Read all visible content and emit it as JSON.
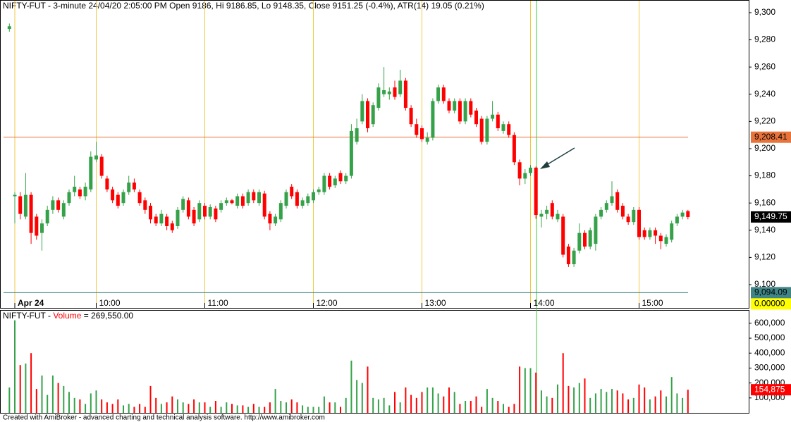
{
  "chart_data": [
    {
      "type": "candlestick",
      "title": "NIFTY-FUT - 3-minute 24/04/20 2:05:00 PM Open 9186, Hi 9186.85, Lo 9148.35, Close 9151.25 (-0.4%), ATR(14) 19.05  (0.21%)",
      "categories": [
        null,
        "Apr 24",
        null,
        null,
        null,
        null,
        null,
        null,
        null,
        null,
        null,
        null,
        null,
        null,
        null,
        null,
        "10:00",
        null,
        null,
        null,
        null,
        null,
        null,
        null,
        null,
        null,
        null,
        null,
        null,
        null,
        null,
        null,
        null,
        null,
        null,
        null,
        "11:00",
        null,
        null,
        null,
        null,
        null,
        null,
        null,
        null,
        null,
        null,
        null,
        null,
        null,
        null,
        null,
        null,
        null,
        null,
        null,
        "12:00",
        null,
        null,
        null,
        null,
        null,
        null,
        null,
        null,
        null,
        null,
        null,
        null,
        null,
        null,
        null,
        null,
        null,
        null,
        null,
        "13:00",
        null,
        null,
        null,
        null,
        null,
        null,
        null,
        null,
        null,
        null,
        null,
        null,
        null,
        null,
        null,
        null,
        null,
        null,
        null,
        "14:00",
        null,
        null,
        null,
        null,
        null,
        null,
        null,
        null,
        null,
        null,
        null,
        null,
        null,
        null,
        null,
        null,
        null,
        null,
        null,
        "15:00",
        null,
        null,
        null,
        null,
        null,
        null,
        null,
        null,
        null
      ],
      "open": [
        9288,
        9165,
        9165,
        9150,
        9166,
        9150,
        9138,
        9145,
        9155,
        9162,
        9150,
        9160,
        9168,
        9170,
        9165,
        9170,
        9192,
        9194,
        9178,
        9170,
        9166,
        9160,
        9168,
        9175,
        9168,
        9162,
        9158,
        9150,
        9145,
        9150,
        9145,
        9143,
        9155,
        9162,
        9155,
        9148,
        9158,
        9150,
        9156,
        9155,
        9160,
        9162,
        9158,
        9165,
        9160,
        9168,
        9160,
        9167,
        9152,
        9145,
        9148,
        9158,
        9172,
        9168,
        9158,
        9160,
        9162,
        9168,
        9168,
        9180,
        9173,
        9182,
        9176,
        9180,
        9205,
        9220,
        9235,
        9218,
        9230,
        9240,
        9240,
        9245,
        9240,
        9250,
        9230,
        9218,
        9215,
        9205,
        9208,
        9235,
        9245,
        9235,
        9228,
        9235,
        9220,
        9235,
        9228,
        9222,
        9205,
        9222,
        9225,
        9213,
        9218,
        9210,
        9190,
        9178,
        9182,
        9186,
        9150,
        9152,
        9160,
        9148,
        9150,
        9128,
        9115,
        9125,
        9138,
        9128,
        9130,
        9150,
        9155,
        9160,
        9168,
        9158,
        9150,
        9146,
        9155,
        9140,
        9135,
        9140,
        9136,
        9130,
        9133,
        9145,
        9150,
        9154
      ],
      "high": [
        9292,
        9168,
        9168,
        9182,
        9168,
        9152,
        9148,
        9158,
        9165,
        9164,
        9162,
        9170,
        9180,
        9172,
        9175,
        9198,
        9205,
        9196,
        9180,
        9172,
        9168,
        9170,
        9180,
        9178,
        9170,
        9164,
        9160,
        9152,
        9155,
        9152,
        9147,
        9157,
        9165,
        9164,
        9157,
        9162,
        9160,
        9159,
        9158,
        9162,
        9164,
        9163,
        9167,
        9167,
        9170,
        9170,
        9170,
        9169,
        9154,
        9152,
        9162,
        9170,
        9174,
        9170,
        9164,
        9167,
        9170,
        9172,
        9182,
        9182,
        9180,
        9184,
        9182,
        9218,
        9222,
        9240,
        9237,
        9234,
        9248,
        9260,
        9245,
        9250,
        9258,
        9252,
        9232,
        9222,
        9217,
        9212,
        9237,
        9247,
        9247,
        9237,
        9237,
        9237,
        9237,
        9237,
        9230,
        9224,
        9224,
        9235,
        9227,
        9220,
        9220,
        9212,
        9192,
        9185,
        9188,
        9186.85,
        9155,
        9158,
        9162,
        9155,
        9152,
        9130,
        9127,
        9145,
        9140,
        9142,
        9152,
        9157,
        9162,
        9176,
        9170,
        9160,
        9152,
        9157,
        9157,
        9142,
        9142,
        9142,
        9138,
        9137,
        9147,
        9152,
        9155,
        9155
      ],
      "low": [
        9286,
        9145,
        9148,
        9148,
        9130,
        9133,
        9125,
        9143,
        9152,
        9153,
        9148,
        9158,
        9165,
        9163,
        9162,
        9168,
        9190,
        9178,
        9168,
        9160,
        9156,
        9158,
        9166,
        9168,
        9158,
        9152,
        9145,
        9143,
        9143,
        9140,
        9138,
        9141,
        9153,
        9148,
        9143,
        9146,
        9148,
        9148,
        9146,
        9153,
        9158,
        9159,
        9156,
        9156,
        9158,
        9160,
        9158,
        9148,
        9140,
        9143,
        9146,
        9156,
        9163,
        9156,
        9156,
        9158,
        9160,
        9166,
        9166,
        9170,
        9171,
        9174,
        9174,
        9178,
        9203,
        9218,
        9212,
        9216,
        9228,
        9238,
        9236,
        9236,
        9238,
        9228,
        9216,
        9208,
        9205,
        9203,
        9206,
        9233,
        9233,
        9226,
        9226,
        9218,
        9218,
        9223,
        9216,
        9203,
        9203,
        9220,
        9213,
        9211,
        9208,
        9188,
        9173,
        9174,
        9180,
        9148.35,
        9142,
        9148,
        9148,
        9146,
        9120,
        9113,
        9113,
        9123,
        9126,
        9126,
        9125,
        9148,
        9153,
        9158,
        9153,
        9148,
        9144,
        9144,
        9133,
        9133,
        9133,
        9130,
        9126,
        9128,
        9131,
        9143,
        9148,
        9148
      ],
      "close": [
        9290,
        9166,
        9152,
        9166,
        9138,
        9136,
        9145,
        9155,
        9162,
        9155,
        9160,
        9168,
        9172,
        9165,
        9172,
        9194,
        9195,
        9180,
        9170,
        9162,
        9158,
        9168,
        9175,
        9170,
        9160,
        9155,
        9148,
        9145,
        9152,
        9143,
        9140,
        9155,
        9163,
        9150,
        9145,
        9160,
        9150,
        9157,
        9148,
        9160,
        9162,
        9160,
        9165,
        9158,
        9168,
        9162,
        9168,
        9150,
        9145,
        9150,
        9160,
        9168,
        9165,
        9158,
        9162,
        9165,
        9168,
        9170,
        9180,
        9172,
        9178,
        9176,
        9180,
        9213,
        9215,
        9235,
        9215,
        9232,
        9245,
        9243,
        9242,
        9238,
        9250,
        9230,
        9218,
        9210,
        9207,
        9208,
        9235,
        9245,
        9235,
        9228,
        9235,
        9220,
        9235,
        9225,
        9218,
        9205,
        9222,
        9225,
        9215,
        9218,
        9210,
        9190,
        9178,
        9182,
        9186,
        9151.25,
        9152,
        9155,
        9150,
        9152,
        9122,
        9115,
        9125,
        9138,
        9128,
        9140,
        9150,
        9155,
        9160,
        9165,
        9155,
        9150,
        9146,
        9155,
        9135,
        9135,
        9140,
        9136,
        9132,
        9135,
        9145,
        9150,
        9153,
        9149.75
      ],
      "last_close_label": "9,149.75",
      "up_color": "#35a24a",
      "down_color": "#ff0000",
      "ylim": [
        9082.9,
        9309.3
      ],
      "yticks": [
        {
          "value": 9100,
          "label": "9,100"
        },
        {
          "value": 9120,
          "label": "9,120"
        },
        {
          "value": 9140,
          "label": "9,140"
        },
        {
          "value": 9160,
          "label": "9,160"
        },
        {
          "value": 9180,
          "label": "9,180"
        },
        {
          "value": 9200,
          "label": "9,200"
        },
        {
          "value": 9220,
          "label": "9,220"
        },
        {
          "value": 9240,
          "label": "9,240"
        },
        {
          "value": 9260,
          "label": "9,260"
        },
        {
          "value": 9280,
          "label": "9,280"
        },
        {
          "value": 9300,
          "label": "9,300"
        }
      ],
      "lines": [
        {
          "value": 9208.41,
          "label": "9,208.41",
          "color": "#e8743b"
        },
        {
          "value": 9094.09,
          "label": "9,094.09",
          "color": "#3f8585"
        }
      ],
      "indicator_label": "0.00000",
      "indicator_color": "#ffff00"
    },
    {
      "type": "bar",
      "title": "NIFTY-FUT - ",
      "series_name": "Volume",
      "value_text": " = 269,550.00",
      "values": [
        170000,
        620000,
        320000,
        330000,
        400000,
        160000,
        250000,
        120000,
        250000,
        200000,
        180000,
        140000,
        100000,
        90000,
        60000,
        130000,
        150000,
        90000,
        70000,
        60000,
        90000,
        50000,
        60000,
        40000,
        60000,
        40000,
        180000,
        100000,
        60000,
        70000,
        110000,
        90000,
        70000,
        60000,
        90000,
        70000,
        70000,
        40000,
        80000,
        40000,
        70000,
        60000,
        50000,
        50000,
        40000,
        60000,
        40000,
        40000,
        70000,
        160000,
        80000,
        70000,
        90000,
        70000,
        50000,
        40000,
        40000,
        40000,
        110000,
        70000,
        70000,
        40000,
        100000,
        350000,
        220000,
        200000,
        310000,
        100000,
        90000,
        100000,
        50000,
        140000,
        70000,
        170000,
        120000,
        100000,
        140000,
        170000,
        170000,
        130000,
        110000,
        170000,
        140000,
        60000,
        80000,
        80000,
        110000,
        40000,
        160000,
        100000,
        80000,
        60000,
        40000,
        60000,
        310000,
        300000,
        300000,
        269550,
        150000,
        110000,
        100000,
        190000,
        400000,
        180000,
        170000,
        200000,
        230000,
        100000,
        130000,
        160000,
        140000,
        160000,
        150000,
        130000,
        90000,
        100000,
        190000,
        170000,
        90000,
        110000,
        150000,
        110000,
        240000,
        130000,
        100000,
        154875
      ],
      "last_value_label": "154,875",
      "ylim": [
        0,
        689000
      ],
      "yticks": [
        {
          "value": 100000,
          "label": "100,000"
        },
        {
          "value": 200000,
          "label": "200,000"
        },
        {
          "value": 300000,
          "label": "300,000"
        },
        {
          "value": 400000,
          "label": "400,000"
        },
        {
          "value": 500000,
          "label": "500,000"
        },
        {
          "value": 600000,
          "label": "600,000"
        }
      ]
    }
  ],
  "footer": "Created with AmiBroker - advanced charting and technical analysis software. http://www.amibroker.com"
}
